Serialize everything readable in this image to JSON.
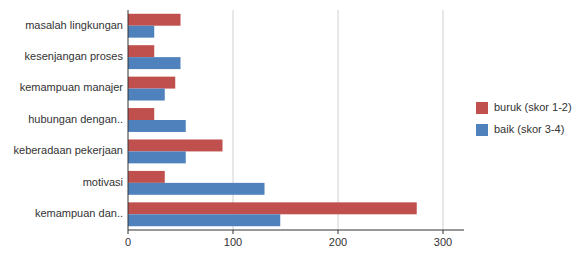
{
  "chart_data": {
    "type": "bar",
    "orientation": "horizontal",
    "categories": [
      "kemampuan dan..",
      "motivasi",
      "keberadaan pekerjaan",
      "hubungan dengan..",
      "kemampuan manajer",
      "kesenjangan proses",
      "masalah lingkungan"
    ],
    "series": [
      {
        "name": "buruk (skor 1-2)",
        "color": "#C0504D",
        "values": [
          275,
          35,
          90,
          25,
          45,
          25,
          50
        ]
      },
      {
        "name": "baik (skor 3-4)",
        "color": "#4F81BD",
        "values": [
          145,
          130,
          55,
          55,
          35,
          50,
          25
        ]
      }
    ],
    "xlim": [
      0,
      320
    ],
    "xticks": [
      0,
      100,
      200,
      300
    ],
    "grid": true,
    "legend": "right"
  }
}
